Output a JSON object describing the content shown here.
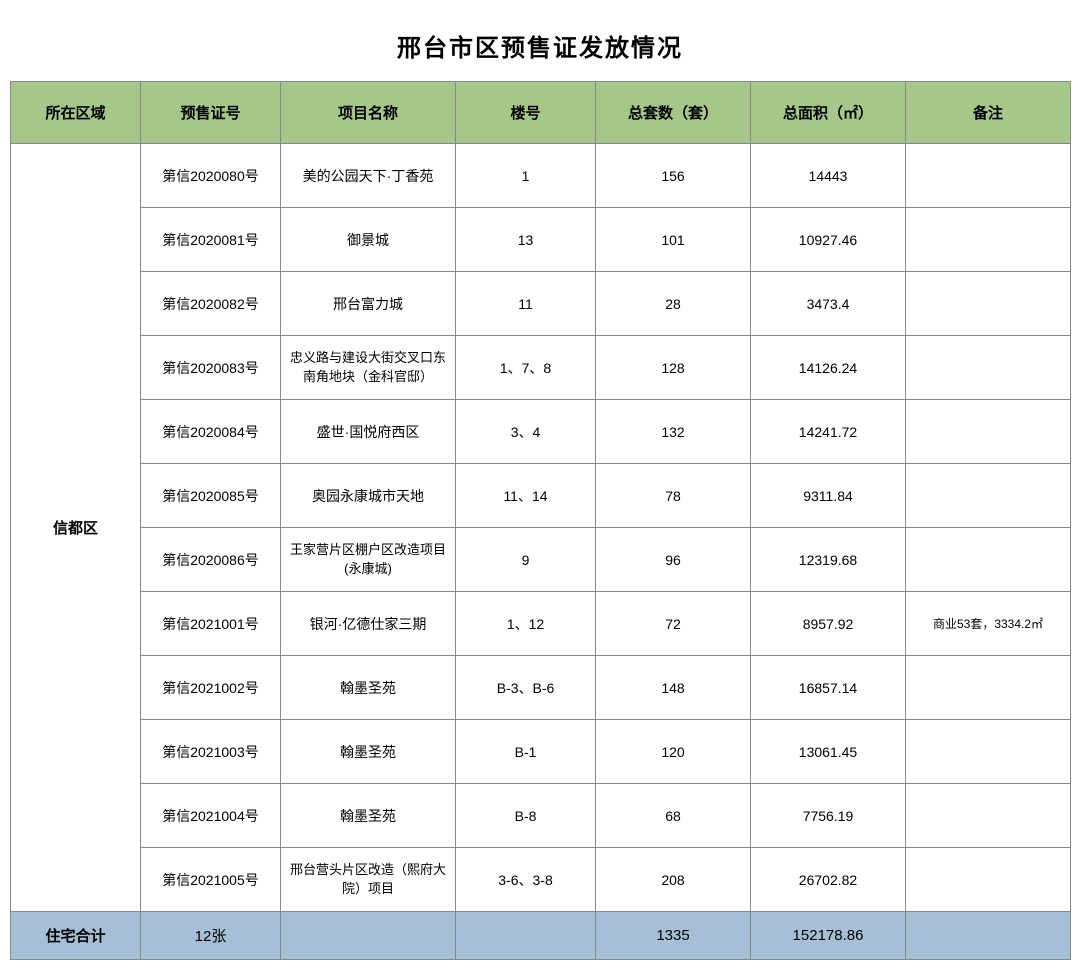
{
  "title": "邢台市区预售证发放情况",
  "columns": {
    "region": "所在区域",
    "cert_no": "预售证号",
    "project": "项目名称",
    "building": "楼号",
    "units": "总套数（套）",
    "area": "总面积（㎡）",
    "remark": "备注"
  },
  "region_name": "信都区",
  "rows": [
    {
      "cert_no": "第信2020080号",
      "project": "美的公园天下·丁香苑",
      "building": "1",
      "units": "156",
      "area": "14443",
      "remark": ""
    },
    {
      "cert_no": "第信2020081号",
      "project": "御景城",
      "building": "13",
      "units": "101",
      "area": "10927.46",
      "remark": ""
    },
    {
      "cert_no": "第信2020082号",
      "project": "邢台富力城",
      "building": "11",
      "units": "28",
      "area": "3473.4",
      "remark": ""
    },
    {
      "cert_no": "第信2020083号",
      "project": "忠义路与建设大街交叉口东南角地块（金科官邸）",
      "building": "1、7、8",
      "units": "128",
      "area": "14126.24",
      "remark": ""
    },
    {
      "cert_no": "第信2020084号",
      "project": "盛世·国悦府西区",
      "building": "3、4",
      "units": "132",
      "area": "14241.72",
      "remark": ""
    },
    {
      "cert_no": "第信2020085号",
      "project": "奥园永康城市天地",
      "building": "11、14",
      "units": "78",
      "area": "9311.84",
      "remark": ""
    },
    {
      "cert_no": "第信2020086号",
      "project": "王家营片区棚户区改造项目(永康城)",
      "building": "9",
      "units": "96",
      "area": "12319.68",
      "remark": ""
    },
    {
      "cert_no": "第信2021001号",
      "project": "银河·亿德仕家三期",
      "building": "1、12",
      "units": "72",
      "area": "8957.92",
      "remark": "商业53套，3334.2㎡"
    },
    {
      "cert_no": "第信2021002号",
      "project": "翰墨圣苑",
      "building": "B-3、B-6",
      "units": "148",
      "area": "16857.14",
      "remark": ""
    },
    {
      "cert_no": "第信2021003号",
      "project": "翰墨圣苑",
      "building": "B-1",
      "units": "120",
      "area": "13061.45",
      "remark": ""
    },
    {
      "cert_no": "第信2021004号",
      "project": "翰墨圣苑",
      "building": "B-8",
      "units": "68",
      "area": "7756.19",
      "remark": ""
    },
    {
      "cert_no": "第信2021005号",
      "project": "邢台营头片区改造（熙府大院）项目",
      "building": "3-6、3-8",
      "units": "208",
      "area": "26702.82",
      "remark": ""
    }
  ],
  "summary": {
    "label": "住宅合计",
    "cert_count": "12张",
    "project": "",
    "building": "",
    "units": "1335",
    "area": "152178.86",
    "remark": ""
  },
  "style": {
    "header_bg": "#a5c78a",
    "summary_bg": "#a5bfd6",
    "border_color": "#888888",
    "text_color": "#000000",
    "background": "#ffffff"
  }
}
